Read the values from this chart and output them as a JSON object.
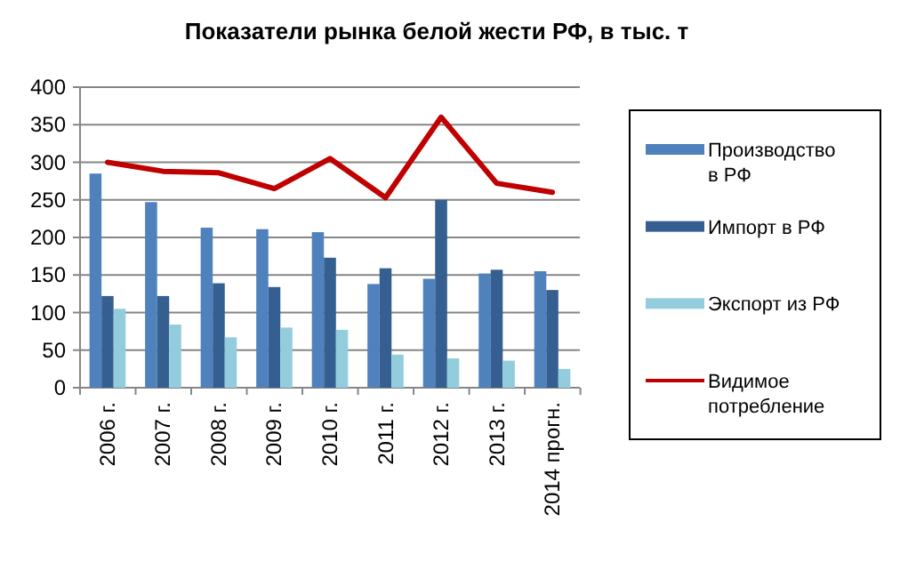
{
  "chart_data": {
    "type": "bar",
    "title": "Показатели рынка белой жести РФ, в тыс. т",
    "categories": [
      "2006 г.",
      "2007 г.",
      "2008 г.",
      "2009 г.",
      "2010 г.",
      "2011 г.",
      "2012 г.",
      "2013 г.",
      "2014 прогн."
    ],
    "series": [
      {
        "name": "Производство в РФ",
        "color": "#4f81bd",
        "values": [
          285,
          247,
          213,
          211,
          207,
          138,
          145,
          152,
          155
        ]
      },
      {
        "name": "Импорт  в РФ",
        "color": "#355f91",
        "values": [
          122,
          122,
          139,
          134,
          173,
          159,
          250,
          157,
          130
        ]
      },
      {
        "name": "Экспорт из РФ",
        "color": "#93cddd",
        "values": [
          105,
          84,
          67,
          80,
          77,
          44,
          39,
          36,
          25
        ]
      },
      {
        "name": "Видимое потребление",
        "type": "line",
        "color": "#c00000",
        "values": [
          300,
          288,
          286,
          265,
          305,
          253,
          360,
          272,
          260
        ]
      }
    ],
    "ylim": [
      0,
      400
    ],
    "yticks": [
      0,
      50,
      100,
      150,
      200,
      250,
      300,
      350,
      400
    ],
    "grid": "y",
    "legend": "right"
  }
}
